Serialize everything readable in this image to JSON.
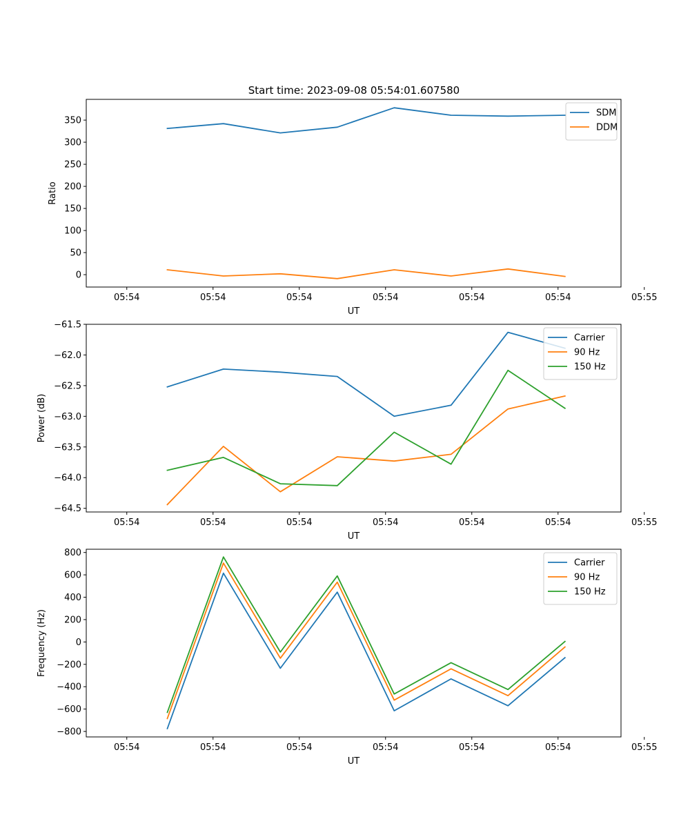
{
  "figure": {
    "title": "Start time: 2023-09-08 05:54:01.607580"
  },
  "colors": {
    "blue": "#1f77b4",
    "orange": "#ff7f0e",
    "green": "#2ca02c"
  },
  "chart_data": [
    {
      "type": "line",
      "title": "Start time: 2023-09-08 05:54:01.607580",
      "xlabel": "UT",
      "ylabel": "Ratio",
      "x": [
        0.47,
        1.12,
        1.78,
        2.44,
        3.1,
        3.76,
        4.42,
        5.08
      ],
      "xlim": [
        -0.47,
        5.73
      ],
      "x_ticks": [
        0,
        1,
        2,
        3,
        4,
        5,
        6
      ],
      "x_tick_labels": [
        "05:54",
        "05:54",
        "05:54",
        "05:54",
        "05:54",
        "05:54",
        "05:55"
      ],
      "ylim": [
        -28,
        397
      ],
      "y_ticks": [
        0,
        50,
        100,
        150,
        200,
        250,
        300,
        350
      ],
      "y_tick_labels": [
        "0",
        "50",
        "100",
        "150",
        "200",
        "250",
        "300",
        "350"
      ],
      "legend_position": "top-right",
      "series": [
        {
          "name": "SDM",
          "color": "#1f77b4",
          "values": [
            331,
            342,
            321,
            334,
            378,
            361,
            359,
            361
          ]
        },
        {
          "name": "DDM",
          "color": "#ff7f0e",
          "values": [
            11,
            -3,
            2,
            -9,
            11,
            -3,
            13,
            -4
          ]
        }
      ]
    },
    {
      "type": "line",
      "title": "",
      "xlabel": "UT",
      "ylabel": "Power (dB)",
      "x": [
        0.47,
        1.12,
        1.78,
        2.44,
        3.1,
        3.76,
        4.42,
        5.08
      ],
      "xlim": [
        -0.47,
        5.73
      ],
      "x_ticks": [
        0,
        1,
        2,
        3,
        4,
        5,
        6
      ],
      "x_tick_labels": [
        "05:54",
        "05:54",
        "05:54",
        "05:54",
        "05:54",
        "05:54",
        "05:55"
      ],
      "ylim": [
        -64.56,
        -61.5
      ],
      "y_ticks": [
        -64.5,
        -64.0,
        -63.5,
        -63.0,
        -62.5,
        -62.0,
        -61.5
      ],
      "y_tick_labels": [
        "−64.5",
        "−64.0",
        "−63.5",
        "−63.0",
        "−62.5",
        "−62.0",
        "−61.5"
      ],
      "legend_position": "top-right",
      "series": [
        {
          "name": "Carrier",
          "color": "#1f77b4",
          "values": [
            -62.52,
            -62.23,
            -62.28,
            -62.35,
            -63.0,
            -62.82,
            -61.63,
            -61.89
          ]
        },
        {
          "name": "90 Hz",
          "color": "#ff7f0e",
          "values": [
            -64.44,
            -63.49,
            -64.23,
            -63.66,
            -63.73,
            -63.62,
            -62.88,
            -62.67
          ]
        },
        {
          "name": "150 Hz",
          "color": "#2ca02c",
          "values": [
            -63.88,
            -63.67,
            -64.1,
            -64.13,
            -63.26,
            -63.78,
            -62.25,
            -62.87
          ]
        }
      ]
    },
    {
      "type": "line",
      "title": "",
      "xlabel": "UT",
      "ylabel": "Frequency (Hz)",
      "x": [
        0.47,
        1.12,
        1.78,
        2.44,
        3.1,
        3.76,
        4.42,
        5.08
      ],
      "xlim": [
        -0.47,
        5.73
      ],
      "x_ticks": [
        0,
        1,
        2,
        3,
        4,
        5,
        6
      ],
      "x_tick_labels": [
        "05:54",
        "05:54",
        "05:54",
        "05:54",
        "05:54",
        "05:54",
        "05:55"
      ],
      "ylim": [
        -849,
        829
      ],
      "y_ticks": [
        -800,
        -600,
        -400,
        -200,
        0,
        200,
        400,
        600,
        800
      ],
      "y_tick_labels": [
        "−800",
        "−600",
        "−400",
        "−200",
        "0",
        "200",
        "400",
        "600",
        "800"
      ],
      "legend_position": "top-right",
      "series": [
        {
          "name": "Carrier",
          "color": "#1f77b4",
          "values": [
            -775,
            615,
            -235,
            445,
            -615,
            -330,
            -570,
            -140
          ]
        },
        {
          "name": "90 Hz",
          "color": "#ff7f0e",
          "values": [
            -685,
            705,
            -145,
            535,
            -520,
            -240,
            -480,
            -45
          ]
        },
        {
          "name": "150 Hz",
          "color": "#2ca02c",
          "values": [
            -630,
            760,
            -90,
            590,
            -465,
            -185,
            -425,
            5
          ]
        }
      ]
    }
  ]
}
